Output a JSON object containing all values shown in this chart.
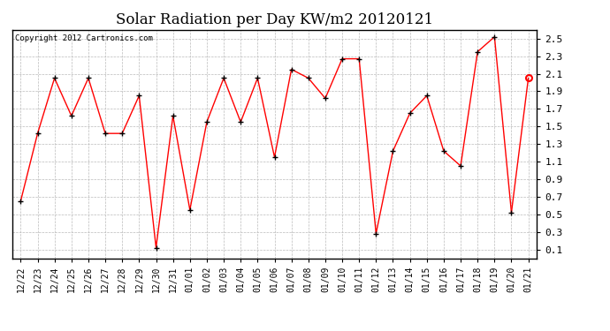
{
  "title": "Solar Radiation per Day KW/m2 20120121",
  "copyright": "Copyright 2012 Cartronics.com",
  "dates": [
    "12/22",
    "12/23",
    "12/24",
    "12/25",
    "12/26",
    "12/27",
    "12/28",
    "12/29",
    "12/30",
    "12/31",
    "01/01",
    "01/02",
    "01/03",
    "01/04",
    "01/05",
    "01/06",
    "01/07",
    "01/08",
    "01/09",
    "01/10",
    "01/11",
    "01/12",
    "01/13",
    "01/14",
    "01/15",
    "01/16",
    "01/17",
    "01/18",
    "01/19",
    "01/20",
    "01/21"
  ],
  "values": [
    0.65,
    1.42,
    2.05,
    1.62,
    2.05,
    1.42,
    1.42,
    1.85,
    0.12,
    1.62,
    0.55,
    1.55,
    2.05,
    1.55,
    2.05,
    1.15,
    2.15,
    2.05,
    1.82,
    2.27,
    2.27,
    0.28,
    1.22,
    1.65,
    1.85,
    1.22,
    1.05,
    2.35,
    2.52,
    0.52,
    2.05
  ],
  "line_color": "#FF0000",
  "marker_color": "#000000",
  "bg_color": "#FFFFFF",
  "grid_color": "#BBBBBB",
  "ylim": [
    0.0,
    2.6
  ],
  "yticks": [
    0.1,
    0.3,
    0.5,
    0.7,
    0.9,
    1.1,
    1.3,
    1.5,
    1.7,
    1.9,
    2.1,
    2.3,
    2.5
  ],
  "title_fontsize": 12,
  "copyright_fontsize": 6.5,
  "tick_fontsize": 7,
  "ytick_fontsize": 8
}
